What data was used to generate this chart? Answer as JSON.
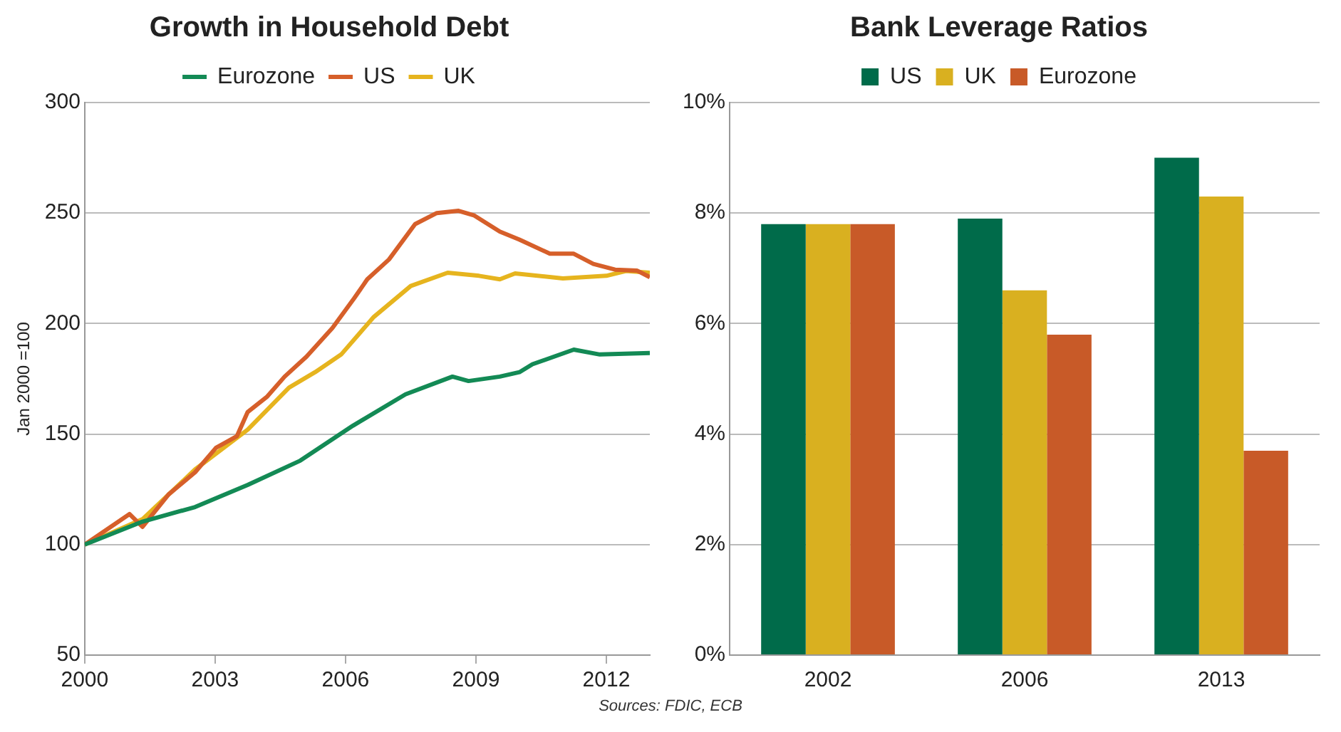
{
  "chart_data": [
    {
      "type": "line",
      "title": "Growth in Household Debt",
      "ylabel": "Jan 2000 =100",
      "xlim": [
        2000,
        2013
      ],
      "xticks": [
        2000,
        2003,
        2006,
        2009,
        2012
      ],
      "ylim": [
        50,
        300
      ],
      "yticks": [
        50,
        100,
        150,
        200,
        250,
        300
      ],
      "grid": "y",
      "legend": "top",
      "marker": "none",
      "line_style": "solid",
      "annotations": [
        "Sources: FDIC, ECB"
      ],
      "series": [
        {
          "name": "Eurozone",
          "color": "#138a55",
          "x": [
            2000,
            2001.33,
            2002.54,
            2003.75,
            2004.96,
            2006.17,
            2007.38,
            2008.46,
            2008.83,
            2009.55,
            2010.0,
            2010.3,
            2011.25,
            2011.85,
            2013
          ],
          "values": [
            100,
            110.4,
            117,
            127,
            138,
            153.8,
            168,
            176,
            174,
            176,
            178,
            181.6,
            188.2,
            186,
            186.7
          ]
        },
        {
          "name": "US",
          "color": "#d65f2a",
          "x": [
            2000,
            2001.03,
            2001.33,
            2001.93,
            2002.54,
            2003.02,
            2003.5,
            2003.75,
            2004.2,
            2004.6,
            2005.1,
            2005.7,
            2006.2,
            2006.5,
            2007.0,
            2007.6,
            2008.1,
            2008.6,
            2008.95,
            2009.55,
            2010.0,
            2010.7,
            2011.25,
            2011.7,
            2012.2,
            2012.7,
            2013
          ],
          "values": [
            100,
            113.8,
            108,
            122.7,
            132.7,
            143.8,
            149,
            160,
            167,
            176,
            185,
            198,
            211.5,
            220,
            229,
            245,
            250,
            251,
            249,
            241.6,
            238,
            231.6,
            231.6,
            227,
            224.4,
            224,
            221
          ]
        },
        {
          "name": "UK",
          "color": "#e6b41e",
          "x": [
            2000,
            2001.33,
            2002.54,
            2003.75,
            2004.7,
            2005.3,
            2005.9,
            2006.65,
            2007.5,
            2008.35,
            2009.07,
            2009.55,
            2009.9,
            2011.0,
            2012.0,
            2012.45,
            2013
          ],
          "values": [
            100,
            111.5,
            134,
            152,
            171,
            178,
            186,
            203,
            217,
            223,
            221.6,
            220,
            222.7,
            220.4,
            221.6,
            223.8,
            223
          ]
        }
      ]
    },
    {
      "type": "bar",
      "title": "Bank Leverage Ratios",
      "categories": [
        "2002",
        "2006",
        "2013"
      ],
      "ylim": [
        0,
        10
      ],
      "yticks": [
        {
          "value": 0,
          "label": "0%"
        },
        {
          "value": 2,
          "label": "2%"
        },
        {
          "value": 4,
          "label": "4%"
        },
        {
          "value": 6,
          "label": "6%"
        },
        {
          "value": 8,
          "label": "8%"
        },
        {
          "value": 10,
          "label": "10%"
        }
      ],
      "grid": "y",
      "legend": "top",
      "series": [
        {
          "name": "US",
          "color": "#006b4a",
          "values": [
            7.8,
            7.9,
            9.0
          ]
        },
        {
          "name": "UK",
          "color": "#d9b020",
          "values": [
            7.8,
            6.6,
            8.3
          ]
        },
        {
          "name": "Eurozone",
          "color": "#c85a28",
          "values": [
            7.8,
            5.8,
            3.7
          ]
        }
      ]
    }
  ]
}
